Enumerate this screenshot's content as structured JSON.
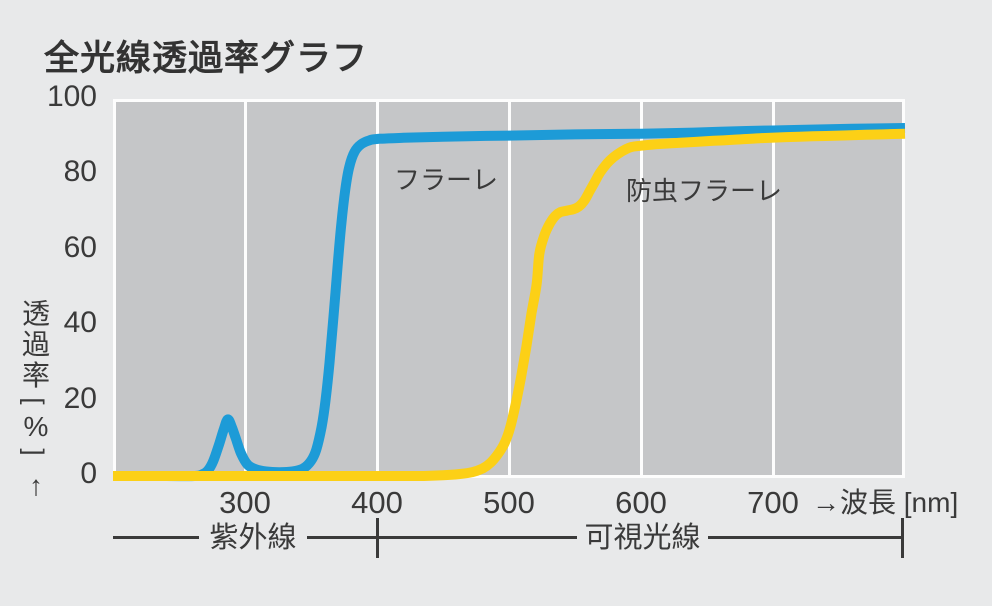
{
  "title": "全光線透過率グラフ",
  "y_axis": {
    "name_chars": [
      "透",
      "過",
      "率"
    ],
    "unit_open": "[",
    "unit": "%",
    "unit_close": "]",
    "arrow": "↑",
    "ticks": [
      0,
      20,
      40,
      60,
      80,
      100
    ]
  },
  "x_axis": {
    "ticks": [
      300,
      400,
      500,
      600,
      700
    ],
    "unit_label": "→波長 [nm]"
  },
  "regions": {
    "uv_label": "紫外線",
    "visible_label": "可視光線"
  },
  "colors": {
    "curve_blue": "#1d9bd7",
    "curve_yellow": "#fcd016",
    "plot_background": "#c5c6c8",
    "page_background": "#e8e9ea",
    "gridline": "#fdfdfd",
    "text": "#3a3a3a"
  },
  "chart_data": {
    "type": "line",
    "title": "全光線透過率グラフ",
    "xlabel": "波長 [nm]",
    "ylabel": "透過率 [%]",
    "x_range": [
      200,
      800
    ],
    "y_range": [
      0,
      100
    ],
    "x_gridlines": [
      300,
      400,
      500,
      600,
      700
    ],
    "grid": "vertical-only",
    "legend_position": "inline-labels",
    "series": [
      {
        "name": "フラーレ",
        "label": "フラーレ",
        "color": "#1d9bd7",
        "points": [
          [
            200,
            0
          ],
          [
            240,
            0
          ],
          [
            262,
            0
          ],
          [
            268,
            0.5
          ],
          [
            272,
            1.5
          ],
          [
            276,
            4
          ],
          [
            280,
            8
          ],
          [
            284,
            12.5
          ],
          [
            287,
            15
          ],
          [
            290,
            13
          ],
          [
            293,
            10
          ],
          [
            297,
            6
          ],
          [
            302,
            3
          ],
          [
            308,
            1.8
          ],
          [
            316,
            1.2
          ],
          [
            326,
            1
          ],
          [
            336,
            1.2
          ],
          [
            344,
            2
          ],
          [
            350,
            4
          ],
          [
            354,
            7
          ],
          [
            358,
            13
          ],
          [
            361,
            20
          ],
          [
            364,
            30
          ],
          [
            367,
            42
          ],
          [
            370,
            55
          ],
          [
            373,
            67
          ],
          [
            376,
            76
          ],
          [
            379,
            82
          ],
          [
            383,
            86
          ],
          [
            388,
            88
          ],
          [
            394,
            89
          ],
          [
            400,
            89.4
          ],
          [
            420,
            89.7
          ],
          [
            450,
            90
          ],
          [
            500,
            90.3
          ],
          [
            550,
            90.6
          ],
          [
            600,
            90.8
          ],
          [
            640,
            91.1
          ],
          [
            680,
            91.5
          ],
          [
            720,
            91.8
          ],
          [
            760,
            92.1
          ],
          [
            800,
            92.3
          ]
        ]
      },
      {
        "name": "防虫フラーレ",
        "label": "防虫フラーレ",
        "color": "#fcd016",
        "points": [
          [
            200,
            0
          ],
          [
            300,
            0
          ],
          [
            400,
            0
          ],
          [
            430,
            0
          ],
          [
            450,
            0.2
          ],
          [
            462,
            0.5
          ],
          [
            472,
            1
          ],
          [
            480,
            2
          ],
          [
            486,
            3.5
          ],
          [
            492,
            6
          ],
          [
            497,
            9
          ],
          [
            501,
            13
          ],
          [
            505,
            19
          ],
          [
            509,
            26
          ],
          [
            513,
            34
          ],
          [
            517,
            43
          ],
          [
            521,
            51
          ],
          [
            523,
            59
          ],
          [
            527,
            64
          ],
          [
            531,
            67
          ],
          [
            535,
            69
          ],
          [
            539,
            70
          ],
          [
            544,
            70.4
          ],
          [
            549,
            70.8
          ],
          [
            553,
            71.5
          ],
          [
            557,
            73
          ],
          [
            561,
            75.5
          ],
          [
            565,
            78
          ],
          [
            569,
            80.5
          ],
          [
            574,
            82.8
          ],
          [
            579,
            84.5
          ],
          [
            585,
            86
          ],
          [
            592,
            87.2
          ],
          [
            600,
            87.6
          ],
          [
            612,
            88
          ],
          [
            625,
            88.3
          ],
          [
            640,
            88.6
          ],
          [
            655,
            88.9
          ],
          [
            670,
            89.2
          ],
          [
            690,
            89.6
          ],
          [
            710,
            89.9
          ],
          [
            730,
            90.1
          ],
          [
            750,
            90.3
          ],
          [
            770,
            90.5
          ],
          [
            800,
            90.8
          ]
        ]
      }
    ]
  }
}
